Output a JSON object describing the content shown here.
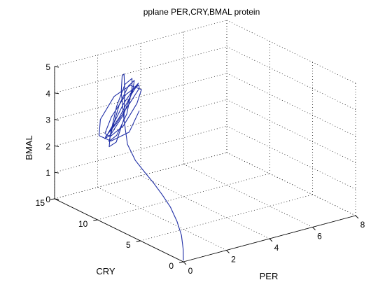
{
  "chart_data": {
    "type": "line",
    "projection": "3d",
    "title": "pplane PER,CRY,BMAL protein",
    "xlabel": "PER",
    "ylabel": "CRY",
    "zlabel": "BMAL",
    "xlim": [
      0,
      8
    ],
    "ylim": [
      0,
      15
    ],
    "zlim": [
      0,
      5
    ],
    "xticks": [
      "0",
      "2",
      "4",
      "6",
      "8"
    ],
    "yticks": [
      "0",
      "5",
      "10",
      "15"
    ],
    "zticks": [
      "0",
      "1",
      "2",
      "3",
      "4",
      "5"
    ],
    "grid": true,
    "series": [
      {
        "color": "#1f2ea6",
        "x": [
          0,
          0,
          0.03,
          0.1,
          0.2,
          0.3,
          0.45,
          0.6,
          0.8,
          1.15,
          1.55,
          1.9,
          2.1,
          1.95,
          1.5,
          1.15,
          0.95,
          1.1,
          1.55,
          2.0,
          2.15,
          2.0,
          1.6,
          1.2,
          1.05,
          1.25,
          1.7,
          2.05,
          2.15,
          1.95,
          1.55,
          1.2,
          1.1,
          1.3,
          1.8,
          2.1,
          2.15,
          1.9,
          1.5,
          1.25,
          1.2,
          1.45,
          1.9,
          2.15,
          2.1,
          1.8,
          1.4,
          1.2,
          1.3,
          1.65,
          2.0,
          2.15,
          2.0,
          1.6,
          1.25,
          1.05,
          1.15,
          1.5,
          1.95,
          2.1
        ],
        "y": [
          0,
          0.02,
          0.3,
          1.0,
          2.0,
          3.2,
          4.6,
          6.0,
          7.6,
          9.4,
          10.8,
          12.0,
          12.4,
          11.8,
          10.6,
          9.8,
          10.2,
          11.4,
          12.4,
          12.8,
          12.2,
          11.0,
          10.0,
          9.6,
          10.4,
          11.8,
          12.6,
          12.6,
          11.8,
          10.6,
          9.8,
          10.0,
          11.2,
          12.4,
          12.8,
          12.2,
          11.0,
          10.0,
          9.8,
          10.6,
          11.8,
          12.7,
          12.6,
          11.6,
          10.4,
          9.7,
          10.2,
          11.4,
          12.4,
          12.7,
          12.0,
          10.8,
          9.9,
          10.2,
          11.2,
          12.3,
          12.7,
          12.2,
          11.2,
          10.4
        ],
        "z": [
          0.05,
          0.45,
          0.95,
          1.35,
          1.7,
          1.95,
          2.15,
          2.3,
          2.45,
          2.7,
          3.3,
          4.1,
          4.6,
          4.8,
          4.5,
          3.6,
          2.7,
          2.3,
          2.5,
          3.4,
          4.3,
          4.75,
          4.6,
          3.8,
          2.9,
          2.4,
          2.6,
          3.5,
          4.3,
          4.75,
          4.55,
          3.7,
          2.8,
          2.4,
          2.7,
          3.6,
          4.4,
          4.75,
          4.45,
          3.5,
          2.7,
          2.4,
          2.8,
          3.7,
          4.45,
          4.75,
          4.4,
          3.4,
          2.6,
          2.35,
          2.8,
          3.8,
          4.5,
          4.7,
          4.2,
          3.2,
          2.5,
          2.3,
          2.7,
          3.6
        ]
      }
    ]
  }
}
